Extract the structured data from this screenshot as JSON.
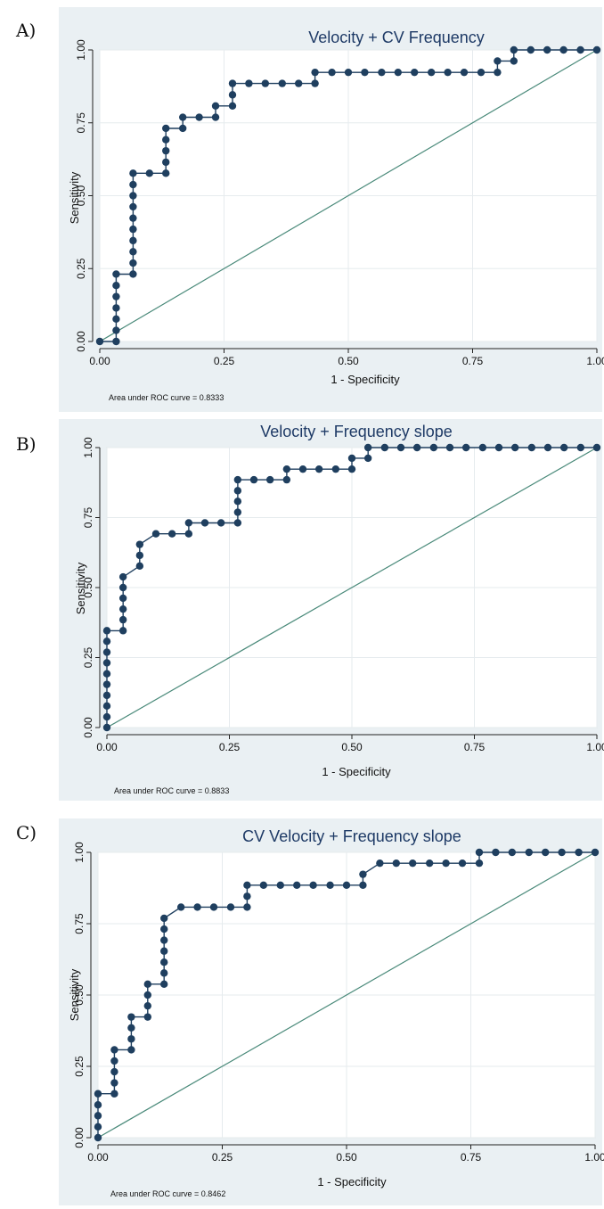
{
  "chart_data": [
    {
      "type": "line",
      "panel_label": "A)",
      "title": "Velocity + CV Frequency",
      "xlabel": "1 - Specificity",
      "ylabel": "Sensitivity",
      "xlim": [
        0,
        1
      ],
      "ylim": [
        0,
        1
      ],
      "xticks": [
        "0.00",
        "0.25",
        "0.50",
        "0.75",
        "1.00"
      ],
      "yticks": [
        "0.00",
        "0.25",
        "0.50",
        "0.75",
        "1.00"
      ],
      "grid": true,
      "auc_text": "Area under ROC curve = 0.8333",
      "colors": {
        "curve": "#1f3f5f",
        "reference": "#4a8a7a",
        "panel_bg": "#eaf0f3"
      },
      "series": [
        {
          "kind": "roc",
          "x": [
            0,
            0.033,
            0.033,
            0.033,
            0.033,
            0.033,
            0.033,
            0.033,
            0.067,
            0.067,
            0.067,
            0.067,
            0.067,
            0.067,
            0.067,
            0.067,
            0.067,
            0.067,
            0.1,
            0.133,
            0.133,
            0.133,
            0.133,
            0.133,
            0.167,
            0.167,
            0.2,
            0.233,
            0.233,
            0.267,
            0.267,
            0.267,
            0.3,
            0.333,
            0.367,
            0.4,
            0.433,
            0.433,
            0.467,
            0.5,
            0.533,
            0.567,
            0.6,
            0.633,
            0.667,
            0.7,
            0.733,
            0.767,
            0.8,
            0.8,
            0.833,
            0.833,
            0.867,
            0.9,
            0.933,
            0.967,
            1.0
          ],
          "y": [
            0,
            0,
            0.038,
            0.077,
            0.115,
            0.154,
            0.192,
            0.231,
            0.231,
            0.269,
            0.308,
            0.346,
            0.385,
            0.423,
            0.462,
            0.5,
            0.538,
            0.577,
            0.577,
            0.577,
            0.615,
            0.654,
            0.692,
            0.731,
            0.731,
            0.769,
            0.769,
            0.769,
            0.808,
            0.808,
            0.846,
            0.885,
            0.885,
            0.885,
            0.885,
            0.885,
            0.885,
            0.923,
            0.923,
            0.923,
            0.923,
            0.923,
            0.923,
            0.923,
            0.923,
            0.923,
            0.923,
            0.923,
            0.923,
            0.962,
            0.962,
            1.0,
            1.0,
            1.0,
            1.0,
            1.0,
            1.0
          ]
        },
        {
          "kind": "reference",
          "x": [
            0,
            1
          ],
          "y": [
            0,
            1
          ]
        }
      ]
    },
    {
      "type": "line",
      "panel_label": "B)",
      "title": "Velocity + Frequency slope",
      "xlabel": "1 - Specificity",
      "ylabel": "Sensitivity",
      "xlim": [
        0,
        1
      ],
      "ylim": [
        0,
        1
      ],
      "xticks": [
        "0.00",
        "0.25",
        "0.50",
        "0.75",
        "1.00"
      ],
      "yticks": [
        "0.00",
        "0.25",
        "0.50",
        "0.75",
        "1.00"
      ],
      "grid": true,
      "auc_text": "Area under ROC curve = 0.8833",
      "colors": {
        "curve": "#1f3f5f",
        "reference": "#4a8a7a",
        "panel_bg": "#eaf0f3"
      },
      "series": [
        {
          "kind": "roc",
          "x": [
            0,
            0,
            0,
            0,
            0,
            0,
            0,
            0,
            0,
            0,
            0.033,
            0.033,
            0.033,
            0.033,
            0.033,
            0.033,
            0.067,
            0.067,
            0.067,
            0.1,
            0.133,
            0.167,
            0.167,
            0.2,
            0.233,
            0.267,
            0.267,
            0.267,
            0.267,
            0.267,
            0.3,
            0.333,
            0.367,
            0.367,
            0.4,
            0.433,
            0.467,
            0.5,
            0.5,
            0.533,
            0.533,
            0.567,
            0.6,
            0.633,
            0.667,
            0.7,
            0.733,
            0.767,
            0.8,
            0.833,
            0.867,
            0.9,
            0.933,
            0.967,
            1.0
          ],
          "y": [
            0,
            0.038,
            0.077,
            0.115,
            0.154,
            0.192,
            0.231,
            0.269,
            0.308,
            0.346,
            0.346,
            0.385,
            0.423,
            0.462,
            0.5,
            0.538,
            0.577,
            0.615,
            0.654,
            0.692,
            0.692,
            0.692,
            0.731,
            0.731,
            0.731,
            0.731,
            0.769,
            0.808,
            0.846,
            0.885,
            0.885,
            0.885,
            0.885,
            0.923,
            0.923,
            0.923,
            0.923,
            0.923,
            0.962,
            0.962,
            1.0,
            1.0,
            1.0,
            1.0,
            1.0,
            1.0,
            1.0,
            1.0,
            1.0,
            1.0,
            1.0,
            1.0,
            1.0,
            1.0,
            1.0
          ]
        },
        {
          "kind": "reference",
          "x": [
            0,
            1
          ],
          "y": [
            0,
            1
          ]
        }
      ]
    },
    {
      "type": "line",
      "panel_label": "C)",
      "title": "CV Velocity + Frequency slope",
      "xlabel": "1 - Specificity",
      "ylabel": "Sensitivity",
      "xlim": [
        0,
        1
      ],
      "ylim": [
        0,
        1
      ],
      "xticks": [
        "0.00",
        "0.25",
        "0.50",
        "0.75",
        "1.00"
      ],
      "yticks": [
        "0.00",
        "0.25",
        "0.50",
        "0.75",
        "1.00"
      ],
      "grid": true,
      "auc_text": "Area under ROC curve = 0.8462",
      "colors": {
        "curve": "#1f3f5f",
        "reference": "#4a8a7a",
        "panel_bg": "#eaf0f3"
      },
      "series": [
        {
          "kind": "roc",
          "x": [
            0,
            0,
            0,
            0,
            0,
            0.033,
            0.033,
            0.033,
            0.033,
            0.033,
            0.067,
            0.067,
            0.067,
            0.067,
            0.1,
            0.1,
            0.1,
            0.1,
            0.133,
            0.133,
            0.133,
            0.133,
            0.133,
            0.133,
            0.133,
            0.167,
            0.2,
            0.233,
            0.267,
            0.3,
            0.3,
            0.3,
            0.333,
            0.367,
            0.4,
            0.433,
            0.467,
            0.5,
            0.533,
            0.533,
            0.567,
            0.6,
            0.633,
            0.667,
            0.7,
            0.733,
            0.767,
            0.767,
            0.8,
            0.833,
            0.867,
            0.9,
            0.933,
            0.967,
            1.0
          ],
          "y": [
            0,
            0.038,
            0.077,
            0.115,
            0.154,
            0.154,
            0.192,
            0.231,
            0.269,
            0.308,
            0.308,
            0.346,
            0.385,
            0.423,
            0.423,
            0.462,
            0.5,
            0.538,
            0.538,
            0.577,
            0.615,
            0.654,
            0.692,
            0.731,
            0.769,
            0.808,
            0.808,
            0.808,
            0.808,
            0.808,
            0.846,
            0.885,
            0.885,
            0.885,
            0.885,
            0.885,
            0.885,
            0.885,
            0.885,
            0.923,
            0.962,
            0.962,
            0.962,
            0.962,
            0.962,
            0.962,
            0.962,
            1.0,
            1.0,
            1.0,
            1.0,
            1.0,
            1.0,
            1.0,
            1.0
          ]
        },
        {
          "kind": "reference",
          "x": [
            0,
            1
          ],
          "y": [
            0,
            1
          ]
        }
      ]
    }
  ]
}
